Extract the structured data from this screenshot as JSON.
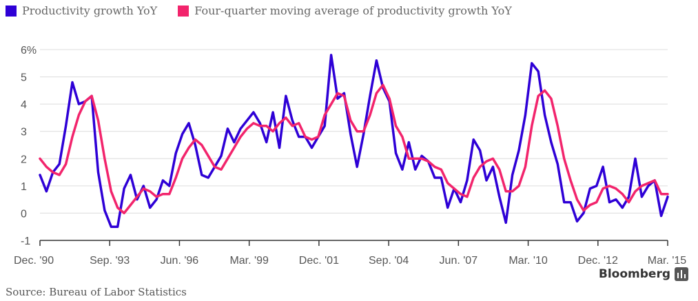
{
  "chart_data": {
    "type": "line",
    "x_labels": [
      "Dec. '90",
      "Sep. '93",
      "Jun. '96",
      "Mar. '99",
      "Dec. '01",
      "Sep. '04",
      "Jun. '07",
      "Mar. '10",
      "Dec. '12",
      "Mar. '15"
    ],
    "y_ticks": [
      "6%",
      "5",
      "4",
      "3",
      "2",
      "1",
      "0",
      "-1"
    ],
    "ylim": [
      -1,
      6
    ],
    "grid": true,
    "legend_position": "top-left",
    "series": [
      {
        "name": "Productivity growth YoY",
        "color": "#2e00d6",
        "values": [
          1.4,
          0.8,
          1.5,
          1.8,
          3.2,
          4.8,
          4.0,
          4.1,
          4.3,
          1.5,
          0.1,
          -0.5,
          -0.5,
          0.9,
          1.4,
          0.5,
          1.0,
          0.2,
          0.5,
          1.2,
          1.0,
          2.2,
          2.9,
          3.3,
          2.5,
          1.4,
          1.3,
          1.7,
          2.1,
          3.1,
          2.6,
          3.1,
          3.4,
          3.7,
          3.3,
          2.6,
          3.7,
          2.4,
          4.3,
          3.4,
          2.8,
          2.8,
          2.4,
          2.8,
          3.2,
          5.8,
          4.2,
          4.4,
          2.9,
          1.7,
          2.9,
          4.3,
          5.6,
          4.6,
          4.1,
          2.2,
          1.6,
          2.6,
          1.6,
          2.1,
          1.9,
          1.3,
          1.3,
          0.2,
          0.9,
          0.4,
          1.2,
          2.7,
          2.3,
          1.2,
          1.7,
          0.6,
          -0.35,
          1.4,
          2.3,
          3.6,
          5.5,
          5.2,
          3.6,
          2.6,
          1.8,
          0.4,
          0.4,
          -0.3,
          0.0,
          0.9,
          1.0,
          1.7,
          0.4,
          0.5,
          0.2,
          0.6,
          2.0,
          0.6,
          1.0,
          1.2,
          -0.1,
          0.6
        ]
      },
      {
        "name": "Four-quarter moving average of productivity growth YoY",
        "color": "#f2246c",
        "values": [
          2.0,
          1.7,
          1.5,
          1.4,
          1.8,
          2.8,
          3.6,
          4.1,
          4.3,
          3.4,
          2.0,
          0.8,
          0.2,
          0.0,
          0.3,
          0.6,
          0.9,
          0.8,
          0.6,
          0.7,
          0.7,
          1.3,
          2.0,
          2.4,
          2.7,
          2.5,
          2.1,
          1.7,
          1.6,
          2.0,
          2.4,
          2.8,
          3.1,
          3.3,
          3.2,
          3.2,
          3.0,
          3.3,
          3.5,
          3.2,
          3.3,
          2.8,
          2.7,
          2.8,
          3.6,
          4.0,
          4.4,
          4.3,
          3.4,
          3.0,
          3.0,
          3.6,
          4.4,
          4.7,
          4.2,
          3.2,
          2.8,
          2.0,
          2.0,
          2.0,
          1.9,
          1.7,
          1.6,
          1.1,
          0.9,
          0.7,
          0.6,
          1.3,
          1.7,
          1.9,
          2.0,
          1.6,
          0.8,
          0.8,
          1.0,
          1.7,
          3.2,
          4.3,
          4.5,
          4.2,
          3.2,
          2.0,
          1.2,
          0.5,
          0.1,
          0.3,
          0.4,
          0.9,
          1.0,
          0.9,
          0.7,
          0.4,
          0.8,
          1.0,
          1.1,
          1.2,
          0.7,
          0.7
        ]
      }
    ]
  },
  "source_text": "Source: Bureau of Labor Statistics",
  "brand_text": "Bloomberg"
}
